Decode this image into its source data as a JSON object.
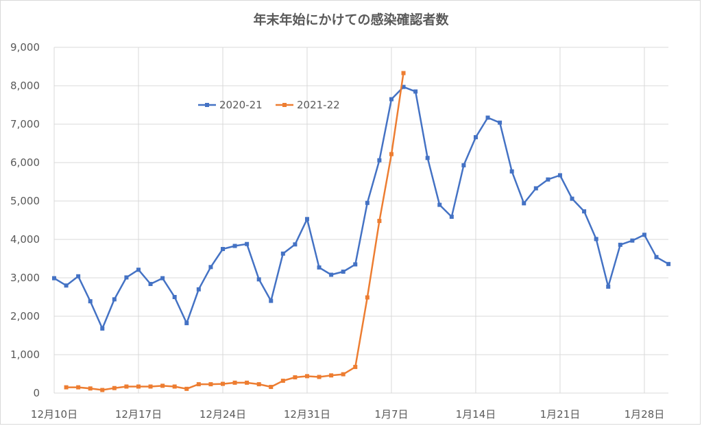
{
  "chart_data": {
    "type": "line",
    "title": "年末年始にかけての感染確認者数",
    "xlabel": "",
    "ylabel": "",
    "ylim": [
      0,
      9000
    ],
    "yticks": [
      0,
      1000,
      2000,
      3000,
      4000,
      5000,
      6000,
      7000,
      8000,
      9000
    ],
    "ytick_labels": [
      "0",
      "1,000",
      "2,000",
      "3,000",
      "4,000",
      "5,000",
      "6,000",
      "7,000",
      "8,000",
      "9,000"
    ],
    "xtick_labels": [
      "12月10日",
      "12月17日",
      "12月24日",
      "12月31日",
      "1月7日",
      "1月14日",
      "1月21日",
      "1月28日"
    ],
    "grid": true,
    "legend_position": "upper-left-inside",
    "series": [
      {
        "name": "2020-21",
        "color": "#4472C4",
        "values": [
          2990,
          2800,
          3040,
          2390,
          1680,
          2440,
          3010,
          3210,
          2840,
          2990,
          2500,
          1820,
          2700,
          3280,
          3750,
          3830,
          3880,
          2960,
          2400,
          3630,
          3870,
          4530,
          3270,
          3080,
          3160,
          3350,
          4950,
          6060,
          7650,
          7970,
          7850,
          6120,
          4900,
          4590,
          5930,
          6660,
          7170,
          7040,
          5770,
          4940,
          5330,
          5560,
          5670,
          5060,
          4730,
          4010,
          2770,
          3860,
          3970,
          4120,
          3540,
          3360
        ]
      },
      {
        "name": "2021-22",
        "color": "#ED7D31",
        "values": [
          null,
          150,
          150,
          120,
          80,
          130,
          170,
          170,
          170,
          190,
          170,
          110,
          230,
          230,
          240,
          270,
          270,
          230,
          160,
          320,
          410,
          440,
          420,
          460,
          490,
          680,
          2490,
          4480,
          6220,
          8330
        ]
      }
    ]
  }
}
